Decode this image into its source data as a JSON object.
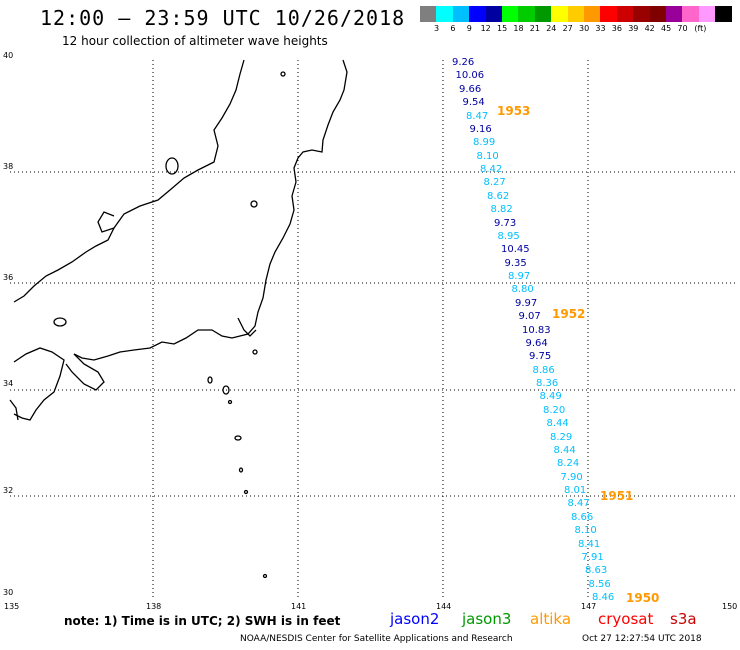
{
  "title": "12:00 – 23:59 UTC 10/26/2018",
  "subtitle": "12 hour collection of altimeter wave heights",
  "legend": {
    "unit": "(ft)",
    "colors": [
      "#7f7f7f",
      "#00ffff",
      "#00bfff",
      "#0000ff",
      "#0000a0",
      "#00ff00",
      "#00cc00",
      "#009900",
      "#ffff00",
      "#ffcc00",
      "#ff9900",
      "#ff0000",
      "#cc0000",
      "#990000",
      "#800000",
      "#990099",
      "#ff66cc",
      "#ff99ff",
      "#000000"
    ],
    "labels": [
      "3",
      "6",
      "9",
      "12",
      "15",
      "18",
      "21",
      "24",
      "27",
      "30",
      "33",
      "36",
      "39",
      "42",
      "45",
      "70"
    ]
  },
  "axes": {
    "lat_labels": [
      "40",
      "38",
      "36",
      "34",
      "32",
      "30"
    ],
    "lon_labels": [
      "135",
      "138",
      "141",
      "144",
      "147",
      "150"
    ]
  },
  "observations": [
    {
      "v": "9.26",
      "c": "#0000a0"
    },
    {
      "v": "10.06",
      "c": "#0000a0"
    },
    {
      "v": "9.66",
      "c": "#0000a0"
    },
    {
      "v": "9.54",
      "c": "#0000a0"
    },
    {
      "v": "8.47",
      "c": "#00bfff"
    },
    {
      "v": "9.16",
      "c": "#0000a0"
    },
    {
      "v": "8.99",
      "c": "#00bfff"
    },
    {
      "v": "8.10",
      "c": "#00bfff"
    },
    {
      "v": "8.42",
      "c": "#00bfff"
    },
    {
      "v": "8.27",
      "c": "#00bfff"
    },
    {
      "v": "8.62",
      "c": "#00bfff"
    },
    {
      "v": "8.82",
      "c": "#00bfff"
    },
    {
      "v": "9.73",
      "c": "#0000a0"
    },
    {
      "v": "8.95",
      "c": "#00bfff"
    },
    {
      "v": "10.45",
      "c": "#0000a0"
    },
    {
      "v": "9.35",
      "c": "#0000a0"
    },
    {
      "v": "8.97",
      "c": "#00bfff"
    },
    {
      "v": "8.80",
      "c": "#00bfff"
    },
    {
      "v": "9.97",
      "c": "#0000a0"
    },
    {
      "v": "9.07",
      "c": "#0000a0"
    },
    {
      "v": "10.83",
      "c": "#0000a0"
    },
    {
      "v": "9.64",
      "c": "#0000a0"
    },
    {
      "v": "9.75",
      "c": "#0000a0"
    },
    {
      "v": "8.86",
      "c": "#00bfff"
    },
    {
      "v": "8.36",
      "c": "#00bfff"
    },
    {
      "v": "8.49",
      "c": "#00bfff"
    },
    {
      "v": "8.20",
      "c": "#00bfff"
    },
    {
      "v": "8.44",
      "c": "#00bfff"
    },
    {
      "v": "8.29",
      "c": "#00bfff"
    },
    {
      "v": "8.44",
      "c": "#00bfff"
    },
    {
      "v": "8.24",
      "c": "#00bfff"
    },
    {
      "v": "7.90",
      "c": "#00bfff"
    },
    {
      "v": "8.01",
      "c": "#00bfff"
    },
    {
      "v": "8.47",
      "c": "#00bfff"
    },
    {
      "v": "8.66",
      "c": "#00bfff"
    },
    {
      "v": "8.10",
      "c": "#00bfff"
    },
    {
      "v": "8.41",
      "c": "#00bfff"
    },
    {
      "v": "7.91",
      "c": "#00bfff"
    },
    {
      "v": "8.63",
      "c": "#00bfff"
    },
    {
      "v": "8.56",
      "c": "#00bfff"
    },
    {
      "v": "8.46",
      "c": "#00bfff"
    }
  ],
  "times": [
    {
      "t": "1953"
    },
    {
      "t": "1952"
    },
    {
      "t": "1951"
    },
    {
      "t": "1950"
    }
  ],
  "time_color": "#ff9900",
  "note": "note:  1) Time is in UTC;  2) SWH is in feet",
  "satellites": [
    {
      "name": "jason2",
      "color": "#0000ff"
    },
    {
      "name": "jason3",
      "color": "#009900"
    },
    {
      "name": "altika",
      "color": "#ff9900"
    },
    {
      "name": "cryosat",
      "color": "#ff0000"
    },
    {
      "name": "s3a",
      "color": "#cc0000"
    }
  ],
  "credit": "NOAA/NESDIS Center for Satellite Applications and Research",
  "timestamp": "Oct 27 12:27:54 UTC 2018"
}
